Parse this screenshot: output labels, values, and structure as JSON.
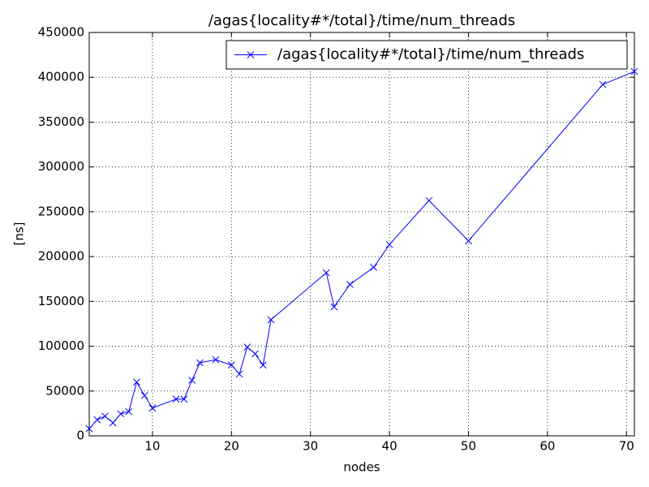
{
  "chart_data": {
    "type": "line",
    "title": "/agas{locality#*/total}/time/num_threads",
    "x_label": "nodes",
    "y_label": "[ns]",
    "x": [
      2,
      3,
      4,
      5,
      6,
      7,
      8,
      9,
      10,
      13,
      14,
      15,
      16,
      18,
      20,
      21,
      22,
      23,
      24,
      25,
      32,
      33,
      35,
      38,
      40,
      45,
      50,
      67,
      71
    ],
    "series": [
      {
        "name": "/agas{locality#*/total}/time/num_threads",
        "color": "#0000ff",
        "values": [
          8000,
          18000,
          22000,
          14500,
          24500,
          27000,
          60000,
          45000,
          31000,
          41000,
          41000,
          62000,
          81500,
          85000,
          79000,
          69000,
          99000,
          91500,
          79000,
          129500,
          182000,
          144000,
          169000,
          188000,
          213500,
          262500,
          217500,
          392000,
          406500
        ]
      }
    ],
    "xlim": [
      2,
      71
    ],
    "xticks": [
      10,
      20,
      30,
      40,
      50,
      60,
      70
    ],
    "ylim": [
      0,
      450000
    ],
    "yticks": [
      0,
      50000,
      100000,
      150000,
      200000,
      250000,
      300000,
      350000,
      400000,
      450000
    ],
    "grid": true,
    "legend": "upper right",
    "marker": "x"
  }
}
